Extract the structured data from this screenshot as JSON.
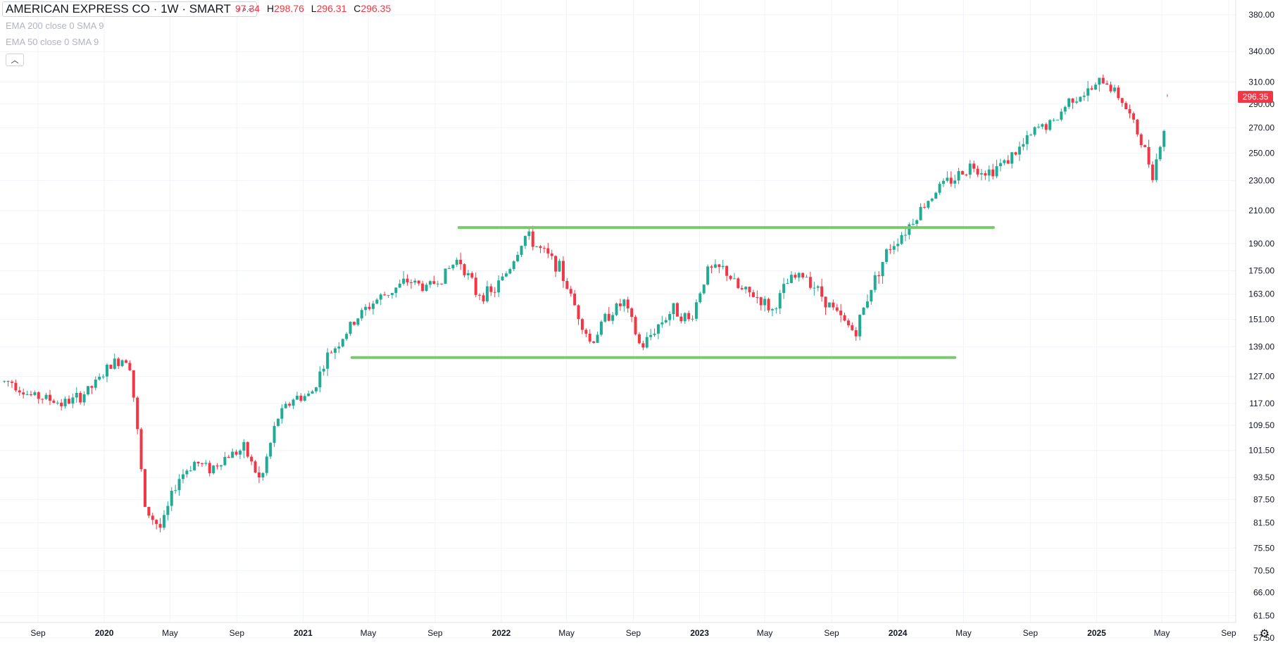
{
  "legend": {
    "title": "AMERICAN EXPRESS CO · 1W · SMART",
    "more": "∘∘∘",
    "ohlc": [
      {
        "k": "",
        "v": "97.34"
      },
      {
        "k": "H",
        "v": "298.76"
      },
      {
        "k": "L",
        "v": "296.31"
      },
      {
        "k": "C",
        "v": "296.35"
      }
    ],
    "indicators": [
      "EMA 200 close 0 SMA 9",
      "EMA 50 close 0 SMA 9"
    ]
  },
  "controls": {
    "collapse_icon": "chevron-up-icon",
    "settings_icon": "gear-icon"
  },
  "colors": {
    "up": "#22ab94",
    "down": "#f23645",
    "line": "#7bc96f",
    "grid": "#f0f3fa",
    "text": "#131722"
  },
  "price_label": "296.35",
  "chart_data": {
    "type": "candlestick",
    "y_scale": "log",
    "ylim": [
      57.5,
      385
    ],
    "y_ticks": [
      "380.00",
      "340.00",
      "310.00",
      "290.00",
      "270.00",
      "250.00",
      "230.00",
      "210.00",
      "190.00",
      "175.00",
      "163.00",
      "151.00",
      "139.00",
      "127.00",
      "117.00",
      "109.50",
      "101.50",
      "93.50",
      "87.50",
      "81.50",
      "75.50",
      "70.50",
      "66.00",
      "61.50",
      "57.50"
    ],
    "x_ticks": [
      {
        "label": "Sep",
        "date": "2019-09"
      },
      {
        "label": "2020",
        "date": "2020-01"
      },
      {
        "label": "May",
        "date": "2020-05"
      },
      {
        "label": "Sep",
        "date": "2020-09"
      },
      {
        "label": "2021",
        "date": "2021-01"
      },
      {
        "label": "May",
        "date": "2021-05"
      },
      {
        "label": "Sep",
        "date": "2021-09"
      },
      {
        "label": "2022",
        "date": "2022-01"
      },
      {
        "label": "May",
        "date": "2022-05"
      },
      {
        "label": "Sep",
        "date": "2022-09"
      },
      {
        "label": "2023",
        "date": "2023-01"
      },
      {
        "label": "May",
        "date": "2023-05"
      },
      {
        "label": "Sep",
        "date": "2023-09"
      },
      {
        "label": "2024",
        "date": "2024-01"
      },
      {
        "label": "May",
        "date": "2024-05"
      },
      {
        "label": "Sep",
        "date": "2024-09"
      },
      {
        "label": "2025",
        "date": "2025-01"
      },
      {
        "label": "May",
        "date": "2025-05"
      },
      {
        "label": "Sep",
        "date": "2025-09"
      }
    ],
    "close_path": [
      [
        "2019-07",
        125
      ],
      [
        "2019-08",
        120
      ],
      [
        "2019-09",
        119
      ],
      [
        "2019-10",
        117
      ],
      [
        "2019-11",
        119
      ],
      [
        "2019-12",
        124
      ],
      [
        "2020-01",
        132
      ],
      [
        "2020-02",
        135
      ],
      [
        "2020-03",
        85
      ],
      [
        "2020-04",
        80
      ],
      [
        "2020-05",
        93
      ],
      [
        "2020-06",
        98
      ],
      [
        "2020-07",
        96
      ],
      [
        "2020-08",
        100
      ],
      [
        "2020-09",
        102
      ],
      [
        "2020-10",
        92
      ],
      [
        "2020-11",
        112
      ],
      [
        "2020-12",
        119
      ],
      [
        "2021-01",
        120
      ],
      [
        "2021-02",
        135
      ],
      [
        "2021-03",
        143
      ],
      [
        "2021-04",
        153
      ],
      [
        "2021-05",
        160
      ],
      [
        "2021-06",
        165
      ],
      [
        "2021-07",
        170
      ],
      [
        "2021-08",
        166
      ],
      [
        "2021-09",
        172
      ],
      [
        "2021-10",
        182
      ],
      [
        "2021-11",
        164
      ],
      [
        "2021-12",
        163
      ],
      [
        "2022-01",
        176
      ],
      [
        "2022-02",
        195
      ],
      [
        "2022-03",
        186
      ],
      [
        "2022-04",
        178
      ],
      [
        "2022-05",
        158
      ],
      [
        "2022-06",
        140
      ],
      [
        "2022-07",
        153
      ],
      [
        "2022-08",
        159
      ],
      [
        "2022-09",
        138
      ],
      [
        "2022-10",
        148
      ],
      [
        "2022-11",
        156
      ],
      [
        "2022-12",
        150
      ],
      [
        "2023-01",
        175
      ],
      [
        "2023-02",
        176
      ],
      [
        "2023-03",
        165
      ],
      [
        "2023-04",
        162
      ],
      [
        "2023-05",
        155
      ],
      [
        "2023-06",
        170
      ],
      [
        "2023-07",
        173
      ],
      [
        "2023-08",
        162
      ],
      [
        "2023-09",
        152
      ],
      [
        "2023-10",
        145
      ],
      [
        "2023-11",
        168
      ],
      [
        "2023-12",
        187
      ],
      [
        "2024-01",
        198
      ],
      [
        "2024-02",
        212
      ],
      [
        "2024-03",
        225
      ],
      [
        "2024-04",
        232
      ],
      [
        "2024-05",
        241
      ],
      [
        "2024-06",
        236
      ],
      [
        "2024-07",
        243
      ],
      [
        "2024-08",
        254
      ],
      [
        "2024-09",
        270
      ],
      [
        "2024-10",
        274
      ],
      [
        "2024-11",
        296
      ],
      [
        "2024-12",
        300
      ],
      [
        "2025-01",
        312
      ],
      [
        "2025-02",
        295
      ],
      [
        "2025-03",
        268
      ],
      [
        "2025-04",
        235
      ],
      [
        "2025-05",
        286
      ]
    ],
    "lines": [
      {
        "price": 199.5,
        "from": "2021-10-15",
        "to": "2024-06-25"
      },
      {
        "price": 134.5,
        "from": "2021-04-01",
        "to": "2024-04-15"
      }
    ]
  }
}
